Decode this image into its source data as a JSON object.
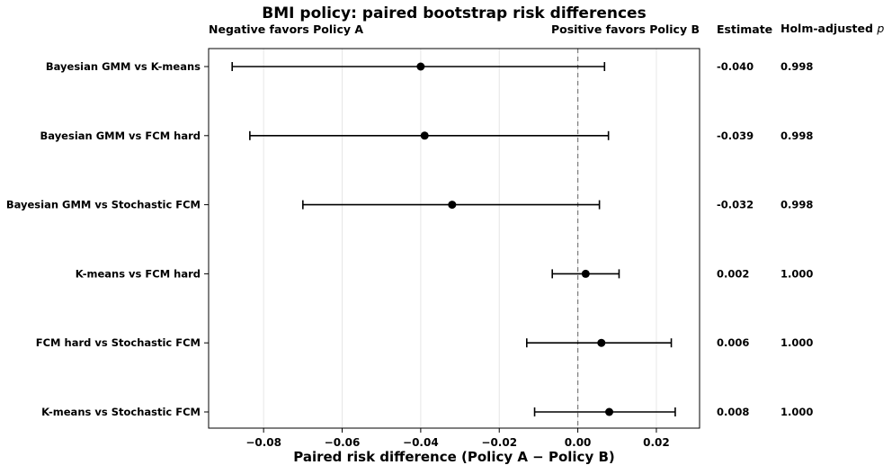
{
  "chart_data": {
    "type": "forest",
    "title": "BMI policy: paired bootstrap risk differences",
    "xlabel": "Paired risk difference (Policy A − Policy B)",
    "ylabel": "",
    "left_annotation": "Negative favors Policy A",
    "right_annotation": "Positive favors Policy B",
    "estimate_header": "Estimate",
    "pvalue_header": "Holm-adjusted",
    "pvalue_header_symbol": "p",
    "xlim": [
      -0.094,
      0.031
    ],
    "xticks": [
      -0.08,
      -0.06,
      -0.04,
      -0.02,
      0.0,
      0.02
    ],
    "xtick_labels": [
      "−0.08",
      "−0.06",
      "−0.04",
      "−0.02",
      "0.00",
      "0.02"
    ],
    "reference_line": 0.0,
    "grid": "vertical",
    "rows": [
      {
        "label": "Bayesian GMM vs K-means",
        "estimate": -0.04,
        "ci_low": -0.088,
        "ci_high": 0.0068,
        "estimate_text": "-0.040",
        "p_text": "0.998"
      },
      {
        "label": "Bayesian GMM vs FCM hard",
        "estimate": -0.039,
        "ci_low": -0.0835,
        "ci_high": 0.0078,
        "estimate_text": "-0.039",
        "p_text": "0.998"
      },
      {
        "label": "Bayesian GMM vs Stochastic FCM",
        "estimate": -0.032,
        "ci_low": -0.07,
        "ci_high": 0.0055,
        "estimate_text": "-0.032",
        "p_text": "0.998"
      },
      {
        "label": "K-means vs FCM hard",
        "estimate": 0.002,
        "ci_low": -0.0065,
        "ci_high": 0.0105,
        "estimate_text": "0.002",
        "p_text": "1.000"
      },
      {
        "label": "FCM hard vs Stochastic FCM",
        "estimate": 0.006,
        "ci_low": -0.013,
        "ci_high": 0.0238,
        "estimate_text": "0.006",
        "p_text": "1.000"
      },
      {
        "label": "K-means vs Stochastic FCM",
        "estimate": 0.008,
        "ci_low": -0.011,
        "ci_high": 0.0248,
        "estimate_text": "0.008",
        "p_text": "1.000"
      }
    ]
  }
}
